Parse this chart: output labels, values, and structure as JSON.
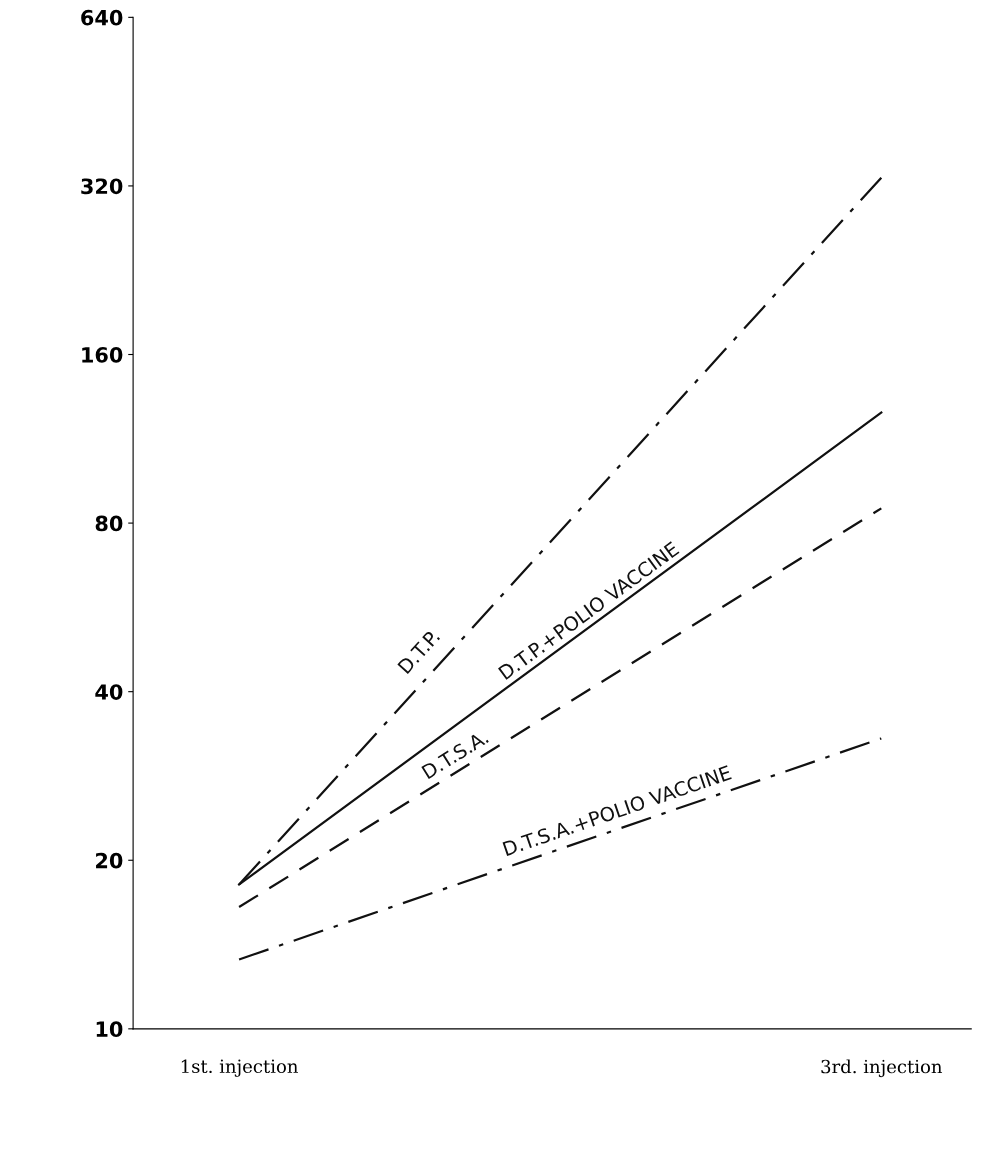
{
  "chart_data": {
    "type": "line",
    "categories": [
      "1st. injection",
      "3rd. injection"
    ],
    "series": [
      {
        "name": "D.T.P.",
        "color": "#111111",
        "values": [
          18.1,
          331
        ],
        "line_style": "dashdot"
      },
      {
        "name": "D.T.P.+POLIO VACCINE",
        "color": "#111111",
        "values": [
          18.1,
          126
        ],
        "line_style": "solid"
      },
      {
        "name": "D.T.S.A.",
        "color": "#111111",
        "values": [
          16.5,
          85
        ],
        "line_style": "dashed"
      },
      {
        "name": "D.T.S.A.+POLIO VACCINE",
        "color": "#111111",
        "values": [
          13.3,
          33
        ],
        "line_style": "dashdot"
      }
    ],
    "log": "y",
    "ylim": [
      10,
      640
    ],
    "yticks": [
      10,
      20,
      40,
      80,
      160,
      320,
      640
    ],
    "grid": false,
    "legend": false,
    "marker": "none"
  }
}
